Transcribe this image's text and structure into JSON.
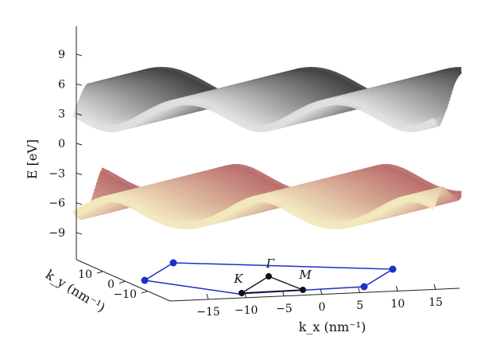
{
  "chart_data": {
    "type": "surface",
    "title": "",
    "zlabel": "E [eV]",
    "xlabel": "k_x (nm⁻¹)",
    "ylabel": "k_y (nm⁻¹)",
    "z_ticks": [
      9,
      6,
      3,
      0,
      -3,
      -6,
      -9
    ],
    "x_ticks": [
      -15,
      -10,
      -5,
      0,
      5,
      10,
      15
    ],
    "y_ticks": [
      10,
      0,
      -10
    ],
    "zlim": [
      -10,
      10
    ],
    "xlim": [
      -18,
      18
    ],
    "ylim": [
      -15,
      15
    ],
    "surfaces": [
      {
        "band": "conduction",
        "colormap": [
          "#3c3c3c",
          "#f0f0f0"
        ],
        "emin": 0.3,
        "emax": 9.6
      },
      {
        "band": "valence",
        "colormap": [
          "#b86a6a",
          "#f4ecc0"
        ],
        "emin": -9.6,
        "emax": -0.3
      }
    ],
    "brillouin_zone": {
      "color": "#1f2fc8"
    },
    "high_symmetry_points": [
      {
        "label": "Γ",
        "kx": 0,
        "ky": 0
      },
      {
        "label": "K",
        "kx": -8.5,
        "ky": -4.9
      },
      {
        "label": "M",
        "kx": 0,
        "ky": -9.8
      }
    ],
    "grid": false
  }
}
